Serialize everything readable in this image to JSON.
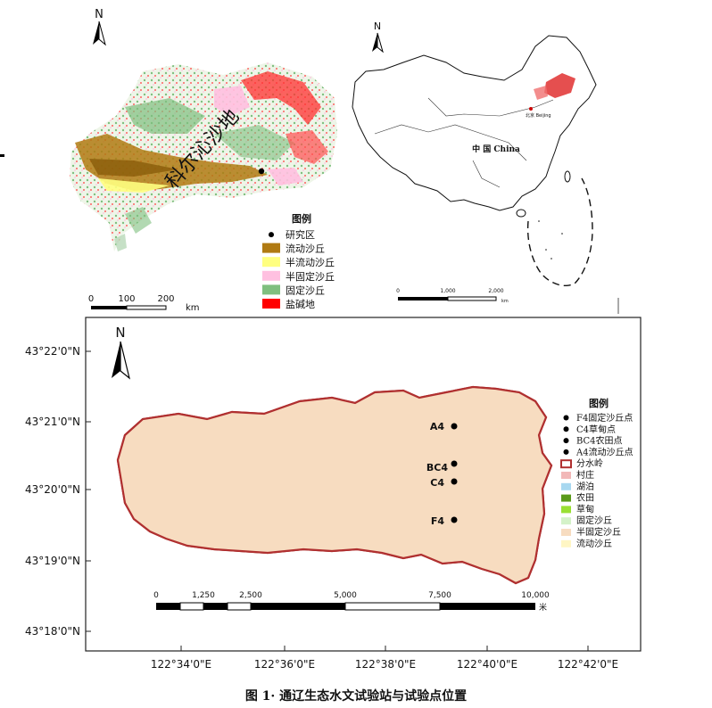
{
  "top_left_map": {
    "north_label": "N",
    "region_label": "科尔沁沙地",
    "legend": {
      "title": "图例",
      "items": [
        {
          "label": "研究区",
          "symbol": "dot",
          "color": "#000000"
        },
        {
          "label": "流动沙丘",
          "symbol": "box",
          "color": "#b07a12"
        },
        {
          "label": "半流动沙丘",
          "symbol": "box",
          "color": "#ffff80"
        },
        {
          "label": "半固定沙丘",
          "symbol": "box",
          "color": "#ffc0e0"
        },
        {
          "label": "固定沙丘",
          "symbol": "box",
          "color": "#7fbf7f"
        },
        {
          "label": "盐碱地",
          "symbol": "box",
          "color": "#ff0000"
        }
      ]
    },
    "scale": {
      "ticks": [
        "0",
        "100",
        "200"
      ],
      "unit": "km"
    }
  },
  "top_right_map": {
    "north_label": "N",
    "country_label": "中 国 China",
    "city_label": "北京 Beijing",
    "scale": {
      "ticks": [
        "0",
        "1,000",
        "2,000"
      ],
      "unit": "km"
    }
  },
  "main_map": {
    "north_label": "N",
    "lat_labels": [
      "43°22'0\"N",
      "43°21'0\"N",
      "43°20'0\"N",
      "43°19'0\"N",
      "43°18'0\"N"
    ],
    "lon_labels": [
      "122°34'0\"E",
      "122°36'0\"E",
      "122°38'0\"E",
      "122°40'0\"E",
      "122°42'0\"E"
    ],
    "points": [
      {
        "label": "A4"
      },
      {
        "label": "BC4"
      },
      {
        "label": "C4"
      },
      {
        "label": "F4"
      }
    ],
    "legend": {
      "title": "图例",
      "items": [
        {
          "label": "F4固定沙丘点",
          "symbol": "dot",
          "color": "#000000"
        },
        {
          "label": "C4草甸点",
          "symbol": "dot",
          "color": "#000000"
        },
        {
          "label": "BC4农田点",
          "symbol": "dot",
          "color": "#000000"
        },
        {
          "label": "A4流动沙丘点",
          "symbol": "dot",
          "color": "#000000"
        },
        {
          "label": "分水岭",
          "symbol": "outline",
          "color": "#b03030"
        },
        {
          "label": "村庄",
          "symbol": "box",
          "color": "#f2b8b8"
        },
        {
          "label": "湖泊",
          "symbol": "box",
          "color": "#a8d8f0"
        },
        {
          "label": "农田",
          "symbol": "box",
          "color": "#5a9a1a"
        },
        {
          "label": "草甸",
          "symbol": "box",
          "color": "#99e033"
        },
        {
          "label": "固定沙丘",
          "symbol": "box",
          "color": "#d4f2c8"
        },
        {
          "label": "半固定沙丘",
          "symbol": "box",
          "color": "#f7dcc0"
        },
        {
          "label": "流动沙丘",
          "symbol": "box",
          "color": "#fff6c4"
        }
      ]
    },
    "scale": {
      "ticks": [
        "0",
        "1,250",
        "2,500",
        "5,000",
        "7,500",
        "10,000"
      ],
      "unit": "米"
    }
  },
  "caption": "图 1· 通辽生态水文试验站与试验点位置"
}
